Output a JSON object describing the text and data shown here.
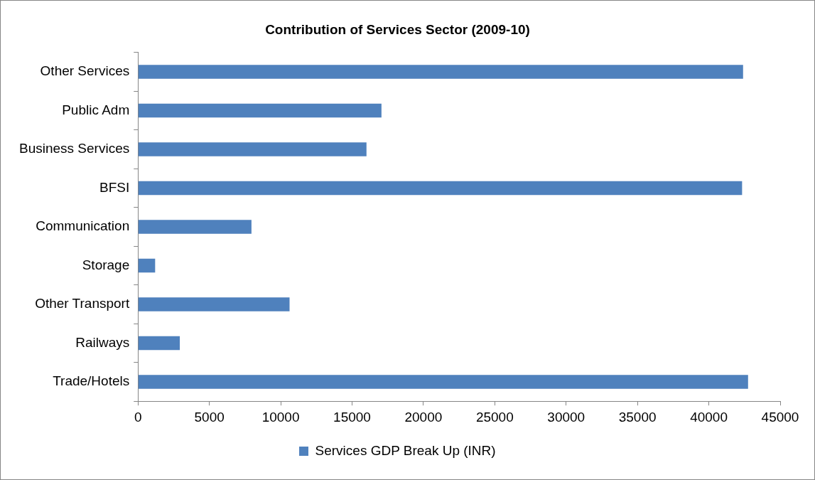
{
  "chart_data": {
    "type": "bar",
    "orientation": "horizontal",
    "title": "Contribution of Services Sector (2009-10)",
    "categories": [
      "Other Services",
      "Public Adm",
      "Business Services",
      "BFSI",
      "Communication",
      "Storage",
      "Other Transport",
      "Railways",
      "Trade/Hotels"
    ],
    "series": [
      {
        "name": "Services GDP Break Up (INR)",
        "color": "#4f81bd",
        "values": [
          42400,
          17060,
          16010,
          42330,
          7950,
          1200,
          10620,
          2930,
          42750
        ]
      }
    ],
    "xlim": [
      0,
      45000
    ],
    "xticks": [
      0,
      5000,
      10000,
      15000,
      20000,
      25000,
      30000,
      35000,
      40000,
      45000
    ],
    "grid": false,
    "legend": "bottom"
  }
}
